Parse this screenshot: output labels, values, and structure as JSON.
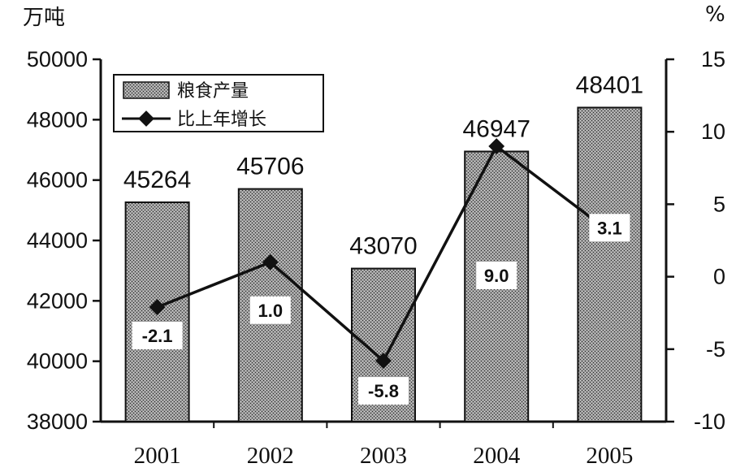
{
  "chart_data": {
    "type": "bar+line",
    "categories": [
      "2001",
      "2002",
      "2003",
      "2004",
      "2005"
    ],
    "left_unit": "万吨",
    "right_unit": "%",
    "left_ylim": [
      38000,
      50000
    ],
    "left_ticks": [
      "50000",
      "48000",
      "46000",
      "44000",
      "42000",
      "40000",
      "38000"
    ],
    "right_ylim": [
      -10,
      15
    ],
    "right_ticks": [
      "15",
      "10",
      "5",
      "0",
      "-5",
      "-10"
    ],
    "series": [
      {
        "name": "粮食产量",
        "type": "bar",
        "axis": "left",
        "values": [
          45264,
          45706,
          43070,
          46947,
          48401
        ]
      },
      {
        "name": "比上年增长",
        "type": "line",
        "axis": "right",
        "values": [
          -2.1,
          1.0,
          -5.8,
          9.0,
          3.1
        ]
      }
    ],
    "bar_labels": [
      "45264",
      "45706",
      "43070",
      "46947",
      "48401"
    ],
    "point_labels": [
      "-2.1",
      "1.0",
      "-5.8",
      "9.0",
      "3.1"
    ],
    "legend_position": "top-left",
    "grid": false,
    "colors": {
      "bar_fill": "#8a8a8a",
      "line": "#000000"
    }
  }
}
